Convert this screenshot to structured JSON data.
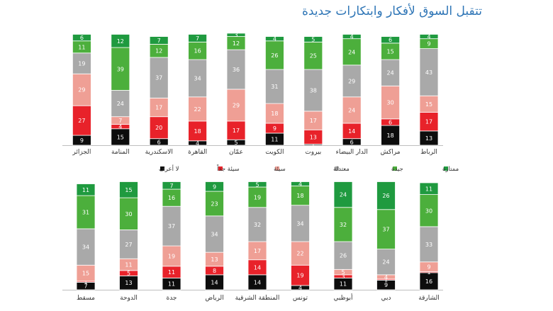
{
  "title": "تتقبل السوق لأفكار وابتكارات جديدة",
  "colors": {
    "ممتازة": "#1f9a3f",
    "جيدة": "#4caf3c",
    "معتدلة": "#a9a9a9",
    "سيئة": "#ef9f95",
    "سيئة جداً": "#e8222a",
    "لا أعرف": "#0d0d0d"
  },
  "legend": [
    "لا أعرف",
    "سيئة جداً",
    "سيئة",
    "معتدلة",
    "جيدة",
    "ممتازة"
  ],
  "chart_data": [
    {
      "type": "bar",
      "stacked": true,
      "ylim": [
        0,
        100
      ],
      "categories": [
        "الرباط",
        "مراكش",
        "الدار البيضاء",
        "بيروت",
        "الكويت",
        "عمّان",
        "القاهرة",
        "الاسكندرية",
        "المنامة",
        "الجزائر"
      ],
      "series": [
        {
          "name": "لا أعرف",
          "values": [
            13,
            18,
            6,
            1,
            11,
            5,
            4,
            6,
            15,
            9
          ]
        },
        {
          "name": "سيئة جداً",
          "values": [
            17,
            6,
            14,
            13,
            9,
            17,
            18,
            20,
            4,
            27
          ]
        },
        {
          "name": "سيئة",
          "values": [
            15,
            30,
            24,
            17,
            18,
            29,
            22,
            17,
            7,
            29
          ]
        },
        {
          "name": "معتدلة",
          "values": [
            43,
            24,
            29,
            38,
            31,
            36,
            34,
            37,
            24,
            19
          ]
        },
        {
          "name": "جيدة",
          "values": [
            9,
            15,
            24,
            25,
            26,
            12,
            16,
            12,
            39,
            11
          ]
        },
        {
          "name": "ممتازة",
          "values": [
            4,
            6,
            4,
            5,
            4,
            3,
            7,
            7,
            12,
            6
          ]
        }
      ]
    },
    {
      "type": "bar",
      "stacked": true,
      "ylim": [
        0,
        100
      ],
      "categories": [
        "الشارقة",
        "دبي",
        "أبوظبي",
        "تونس",
        "المنطقة الشرقية",
        "الرياض",
        "جدة",
        "الدوحة",
        "مسقط"
      ],
      "series": [
        {
          "name": "لا أعرف",
          "values": [
            16,
            9,
            11,
            4,
            14,
            14,
            11,
            13,
            7
          ]
        },
        {
          "name": "سيئة جداً",
          "values": [
            1,
            1,
            3,
            19,
            14,
            8,
            11,
            5,
            1
          ]
        },
        {
          "name": "سيئة",
          "values": [
            9,
            4,
            5,
            22,
            17,
            13,
            19,
            11,
            15
          ]
        },
        {
          "name": "معتدلة",
          "values": [
            33,
            24,
            26,
            34,
            32,
            34,
            37,
            27,
            34
          ]
        },
        {
          "name": "جيدة",
          "values": [
            30,
            37,
            32,
            18,
            19,
            23,
            16,
            30,
            31
          ]
        },
        {
          "name": "ممتازة",
          "values": [
            11,
            26,
            24,
            4,
            5,
            9,
            7,
            15,
            11
          ]
        }
      ]
    }
  ]
}
